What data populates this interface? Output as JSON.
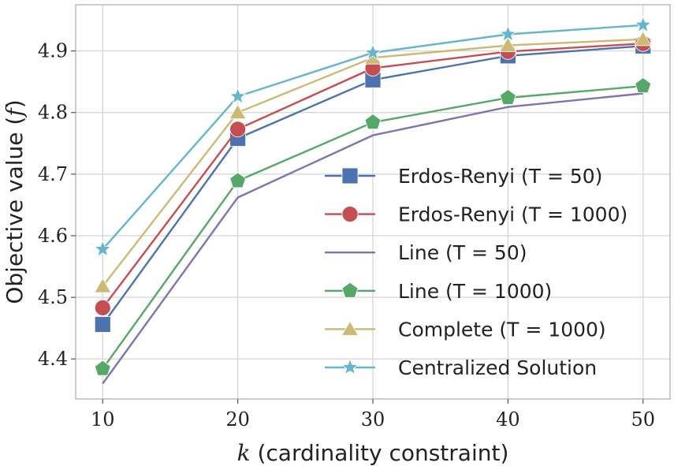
{
  "chart_data": {
    "type": "line",
    "title": "",
    "xlabel_var": "k",
    "xlabel_rest": " (cardinality constraint)",
    "ylabel_text": "Objective value (",
    "ylabel_var": "f",
    "ylabel_close": ")",
    "x": [
      10,
      20,
      30,
      40,
      50
    ],
    "x_tick_labels": [
      "10",
      "20",
      "30",
      "40",
      "50"
    ],
    "y_ticks": [
      4.4,
      4.5,
      4.6,
      4.7,
      4.8,
      4.9
    ],
    "y_tick_labels": [
      "4.4",
      "4.5",
      "4.6",
      "4.7",
      "4.8",
      "4.9"
    ],
    "xlim": [
      8,
      52
    ],
    "ylim": [
      4.335,
      4.975
    ],
    "grid": true,
    "legend_position": "center-right",
    "series": [
      {
        "name": "Erdos-Renyi (T = 50)",
        "color": "#4c72b0",
        "marker": "square",
        "values": [
          4.456,
          4.758,
          4.853,
          4.892,
          4.908
        ]
      },
      {
        "name": "Erdos-Renyi (T = 1000)",
        "color": "#c44e52",
        "marker": "circle",
        "values": [
          4.483,
          4.773,
          4.872,
          4.899,
          4.912
        ]
      },
      {
        "name": "Line (T = 50)",
        "color": "#8172b2",
        "marker": "none",
        "values": [
          4.36,
          4.662,
          4.763,
          4.809,
          4.831
        ]
      },
      {
        "name": "Line (T = 1000)",
        "color": "#55a868",
        "marker": "pentagon",
        "values": [
          4.384,
          4.689,
          4.784,
          4.824,
          4.843
        ]
      },
      {
        "name": "Complete (T = 1000)",
        "color": "#ccb974",
        "marker": "triangle",
        "values": [
          4.518,
          4.8,
          4.889,
          4.909,
          4.919
        ]
      },
      {
        "name": "Centralized Solution",
        "color": "#64b5cd",
        "marker": "star",
        "values": [
          4.578,
          4.826,
          4.897,
          4.927,
          4.942
        ]
      }
    ]
  }
}
